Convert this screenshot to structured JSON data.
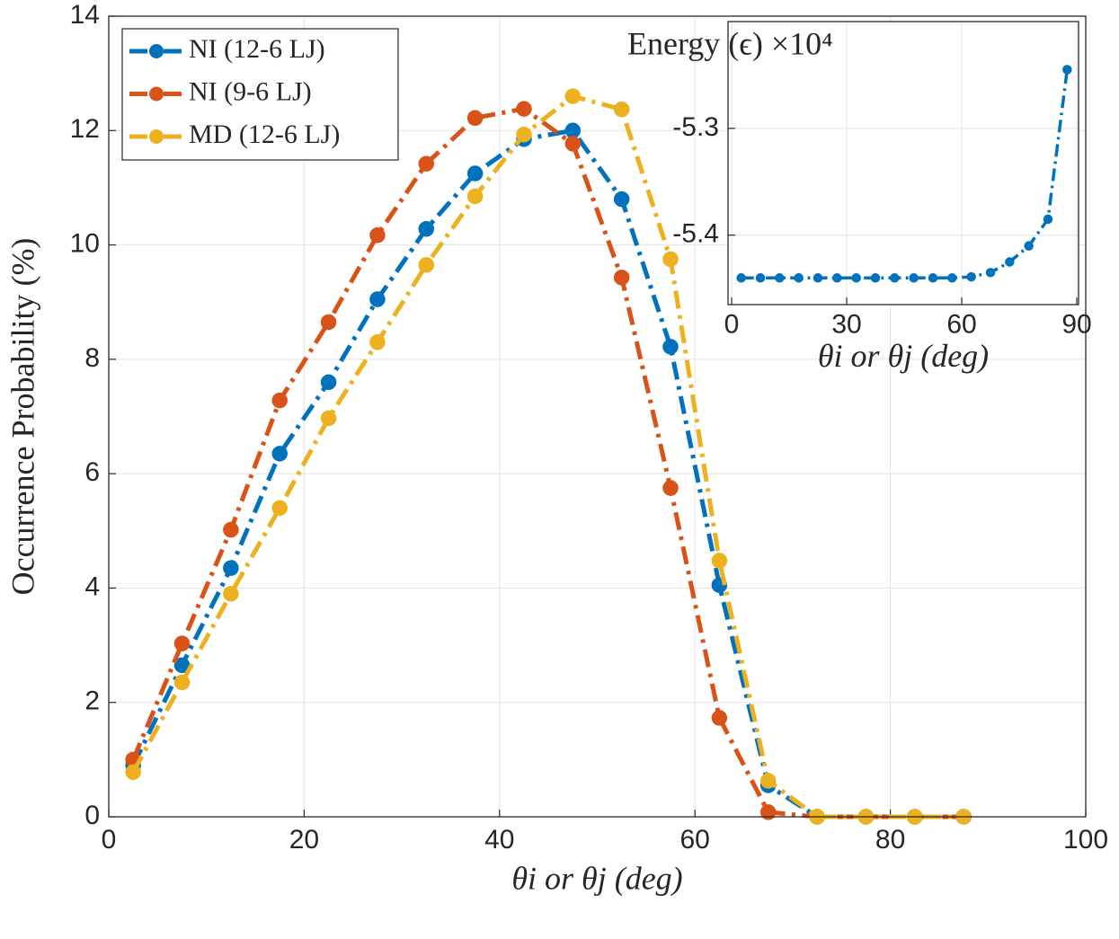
{
  "chart_data": [
    {
      "type": "line",
      "xlabel": "θi or θj (deg)",
      "ylabel": "Occurrence Probability (%)",
      "x": [
        2.5,
        7.5,
        12.5,
        17.5,
        22.5,
        27.5,
        32.5,
        37.5,
        42.5,
        47.5,
        52.5,
        57.5,
        62.5,
        67.5,
        72.5,
        77.5,
        82.5,
        87.5
      ],
      "series": [
        {
          "name": "NI (12-6 LJ)",
          "color": "#0072BD",
          "values": [
            0.9,
            2.65,
            4.35,
            6.35,
            7.6,
            9.05,
            10.28,
            11.25,
            11.85,
            12.0,
            10.8,
            8.22,
            4.05,
            0.55,
            0,
            0,
            0,
            0
          ]
        },
        {
          "name": "NI (9-6 LJ)",
          "color": "#D95319",
          "values": [
            1.0,
            3.03,
            5.02,
            7.28,
            8.65,
            10.17,
            11.42,
            12.22,
            12.38,
            11.77,
            9.43,
            5.75,
            1.73,
            0.08,
            0,
            0,
            0,
            0
          ]
        },
        {
          "name": "MD (12-6 LJ)",
          "color": "#EDB120",
          "values": [
            0.78,
            2.35,
            3.9,
            5.4,
            6.97,
            8.3,
            9.65,
            10.85,
            11.93,
            12.6,
            12.37,
            9.75,
            4.48,
            0.63,
            0,
            0,
            0,
            0
          ]
        }
      ],
      "xlim": [
        0,
        100
      ],
      "xticks": [
        0,
        20,
        40,
        60,
        80,
        100
      ],
      "ylim": [
        0,
        14
      ],
      "yticks": [
        0,
        2,
        4,
        6,
        8,
        10,
        12,
        14
      ],
      "grid": true,
      "legend": "upper left"
    },
    {
      "type": "line",
      "title": "Energy (ϵ) ×10⁴",
      "xlabel": "θi or θj (deg)",
      "x": [
        2.5,
        7.5,
        12.5,
        17.5,
        22.5,
        27.5,
        32.5,
        37.5,
        42.5,
        47.5,
        52.5,
        57.5,
        62.5,
        67.5,
        72.5,
        77.5,
        82.5,
        87.5
      ],
      "series": [
        {
          "color": "#0072BD",
          "values": [
            -5.44,
            -5.44,
            -5.44,
            -5.44,
            -5.44,
            -5.44,
            -5.44,
            -5.44,
            -5.44,
            -5.44,
            -5.44,
            -5.44,
            -5.439,
            -5.435,
            -5.425,
            -5.41,
            -5.385,
            -5.245
          ]
        }
      ],
      "xlim": [
        0,
        90
      ],
      "xticks": [
        0,
        30,
        60,
        90
      ],
      "ylim": [
        -5.465,
        -5.2
      ],
      "yticks": [
        -5.4,
        -5.3
      ],
      "grid": true
    }
  ]
}
